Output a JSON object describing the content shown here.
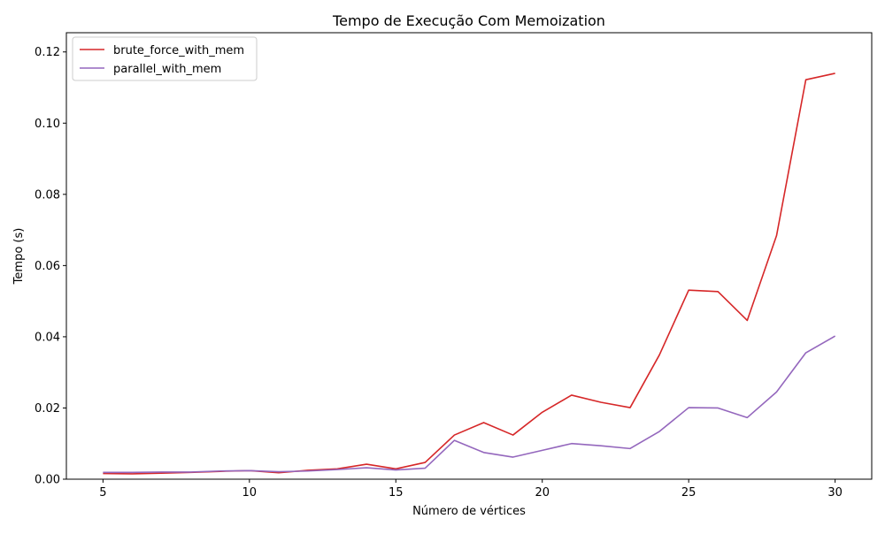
{
  "chart_data": {
    "type": "line",
    "title": "Tempo de Execução Com Memoization",
    "xlabel": "Número de vértices",
    "ylabel": "Tempo (s)",
    "xlim": [
      3.75,
      31.25
    ],
    "ylim": [
      0,
      0.1254
    ],
    "xticks": [
      5,
      10,
      15,
      20,
      25,
      30
    ],
    "xtick_labels": [
      "5",
      "10",
      "15",
      "20",
      "25",
      "30"
    ],
    "yticks": [
      0,
      0.02,
      0.04,
      0.06,
      0.08,
      0.1,
      0.12
    ],
    "ytick_labels": [
      "0.00",
      "0.02",
      "0.04",
      "0.06",
      "0.08",
      "0.10",
      "0.12"
    ],
    "grid": false,
    "legend_position": "upper-left",
    "x": [
      5,
      6,
      7,
      8,
      9,
      10,
      11,
      12,
      13,
      14,
      15,
      16,
      17,
      18,
      19,
      20,
      21,
      22,
      23,
      24,
      25,
      26,
      27,
      28,
      29,
      30
    ],
    "series": [
      {
        "name": "brute_force_with_mem",
        "color": "#d62728",
        "values": [
          0.0016,
          0.0015,
          0.0017,
          0.0019,
          0.0022,
          0.0024,
          0.0018,
          0.0025,
          0.0029,
          0.0042,
          0.0029,
          0.0047,
          0.0124,
          0.0159,
          0.0124,
          0.0188,
          0.0236,
          0.0216,
          0.0201,
          0.0349,
          0.0531,
          0.0527,
          0.0446,
          0.0684,
          0.1122,
          0.114
        ]
      },
      {
        "name": "parallel_with_mem",
        "color": "#9467bd",
        "values": [
          0.0019,
          0.0019,
          0.002,
          0.002,
          0.0023,
          0.0024,
          0.0021,
          0.0023,
          0.0027,
          0.0032,
          0.0026,
          0.0031,
          0.0109,
          0.0075,
          0.0062,
          0.0081,
          0.01,
          0.0094,
          0.0086,
          0.0134,
          0.0201,
          0.02,
          0.0173,
          0.0245,
          0.0355,
          0.0402
        ]
      }
    ]
  }
}
